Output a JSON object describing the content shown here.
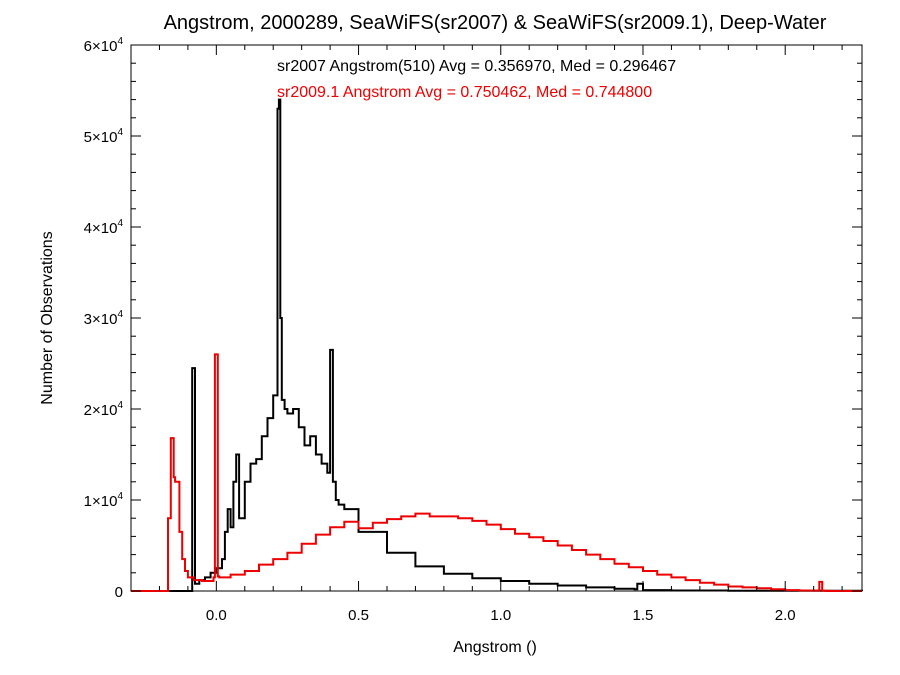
{
  "chart_data": {
    "type": "line",
    "title": "Angstrom, 2000289, SeaWiFS(sr2007) & SeaWiFS(sr2009.1), Deep-Water",
    "xlabel": "Angstrom ()",
    "ylabel": "Number of Observations",
    "xlim": [
      -0.3,
      2.27
    ],
    "ylim": [
      0,
      60000
    ],
    "x_ticks": [
      {
        "value": 0.0,
        "label": "0.0"
      },
      {
        "value": 0.5,
        "label": "0.5"
      },
      {
        "value": 1.0,
        "label": "1.0"
      },
      {
        "value": 1.5,
        "label": "1.5"
      },
      {
        "value": 2.0,
        "label": "2.0"
      }
    ],
    "y_ticks": [
      {
        "value": 0,
        "label": "0"
      },
      {
        "value": 10000,
        "label": "1×10",
        "exp": "4"
      },
      {
        "value": 20000,
        "label": "2×10",
        "exp": "4"
      },
      {
        "value": 30000,
        "label": "3×10",
        "exp": "4"
      },
      {
        "value": 40000,
        "label": "4×10",
        "exp": "4"
      },
      {
        "value": 50000,
        "label": "5×10",
        "exp": "4"
      },
      {
        "value": 60000,
        "label": "6×10",
        "exp": "4"
      }
    ],
    "annotations": [
      {
        "text": "sr2007 Angstrom(510) Avg = 0.356970, Med = 0.296467",
        "color": "#000000"
      },
      {
        "text": "sr2009.1 Angstrom Avg = 0.750462, Med = 0.744800",
        "color": "#ee0000"
      }
    ],
    "grid": false,
    "series": [
      {
        "name": "sr2007",
        "color": "#000000",
        "x": [
          -0.3,
          -0.11,
          -0.09,
          -0.085,
          -0.075,
          -0.06,
          -0.04,
          -0.02,
          0.0,
          0.02,
          0.03,
          0.04,
          0.05,
          0.06,
          0.07,
          0.08,
          0.1,
          0.12,
          0.14,
          0.16,
          0.18,
          0.2,
          0.215,
          0.22,
          0.225,
          0.23,
          0.24,
          0.25,
          0.27,
          0.29,
          0.31,
          0.33,
          0.35,
          0.37,
          0.39,
          0.4,
          0.41,
          0.42,
          0.43,
          0.45,
          0.5,
          0.6,
          0.7,
          0.8,
          0.9,
          1.0,
          1.1,
          1.2,
          1.3,
          1.4,
          1.47,
          1.48,
          1.5,
          1.6,
          1.8,
          2.27
        ],
        "y": [
          0,
          0,
          0,
          24500,
          800,
          1200,
          1500,
          2000,
          2500,
          3500,
          6500,
          9000,
          7000,
          12000,
          15000,
          8000,
          12000,
          14000,
          14500,
          17000,
          19000,
          21500,
          53000,
          54000,
          30000,
          21000,
          20000,
          19500,
          20000,
          18000,
          16000,
          17000,
          15000,
          14000,
          13000,
          26500,
          12000,
          10000,
          9500,
          9000,
          6500,
          4200,
          2700,
          1900,
          1400,
          1100,
          800,
          600,
          400,
          250,
          200,
          800,
          100,
          50,
          20,
          0
        ]
      },
      {
        "name": "sr2009.1",
        "color": "#ee0000",
        "x": [
          -0.3,
          -0.18,
          -0.17,
          -0.16,
          -0.15,
          -0.145,
          -0.13,
          -0.12,
          -0.11,
          -0.1,
          -0.08,
          -0.05,
          -0.01,
          -0.005,
          0.005,
          0.01,
          0.05,
          0.1,
          0.15,
          0.2,
          0.25,
          0.3,
          0.35,
          0.4,
          0.45,
          0.5,
          0.55,
          0.6,
          0.65,
          0.7,
          0.75,
          0.8,
          0.85,
          0.9,
          0.95,
          1.0,
          1.05,
          1.1,
          1.15,
          1.2,
          1.25,
          1.3,
          1.35,
          1.4,
          1.45,
          1.5,
          1.55,
          1.6,
          1.65,
          1.7,
          1.75,
          1.8,
          1.85,
          1.9,
          1.95,
          2.0,
          2.05,
          2.1,
          2.12,
          2.13,
          2.14,
          2.15,
          2.27
        ],
        "y": [
          0,
          0,
          8000,
          16800,
          12500,
          12000,
          6500,
          3500,
          2200,
          1500,
          1200,
          1100,
          1500,
          26000,
          1600,
          1500,
          1800,
          2200,
          2900,
          3500,
          4200,
          5200,
          6200,
          7000,
          7600,
          6900,
          7500,
          7900,
          8200,
          8500,
          8200,
          8200,
          8000,
          7700,
          7300,
          6800,
          6300,
          5900,
          5500,
          5000,
          4500,
          4000,
          3500,
          3000,
          2600,
          2200,
          1800,
          1500,
          1200,
          900,
          700,
          500,
          400,
          300,
          200,
          100,
          60,
          40,
          1000,
          40,
          10,
          0,
          0
        ]
      }
    ]
  }
}
